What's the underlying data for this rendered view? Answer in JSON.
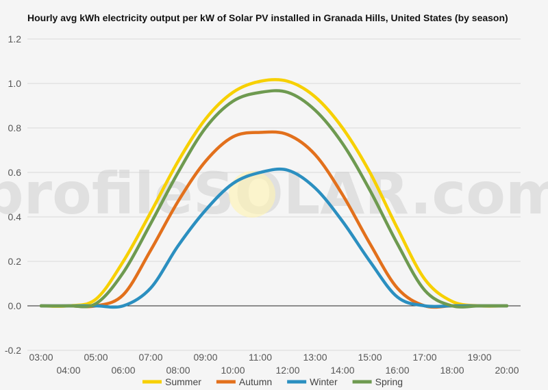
{
  "watermark": "profileSOLAR.com",
  "chart_data": {
    "type": "line",
    "title": "Hourly avg kWh electricity output per kW of Solar PV installed in Granada Hills, United States (by season)",
    "xlabel": "",
    "ylabel": "",
    "x": [
      3,
      4,
      5,
      6,
      7,
      8,
      9,
      10,
      11,
      12,
      13,
      14,
      15,
      16,
      17,
      18,
      19,
      20
    ],
    "x_tick_labels": [
      "03:00",
      "04:00",
      "05:00",
      "06:00",
      "07:00",
      "08:00",
      "09:00",
      "10:00",
      "11:00",
      "12:00",
      "13:00",
      "14:00",
      "15:00",
      "16:00",
      "17:00",
      "18:00",
      "19:00",
      "20:00"
    ],
    "ylim": [
      -0.2,
      1.2
    ],
    "y_ticks": [
      -0.2,
      0.0,
      0.2,
      0.4,
      0.6,
      0.8,
      1.0,
      1.2
    ],
    "y_tick_labels": [
      "-0.2",
      "0.0",
      "0.2",
      "0.4",
      "0.6",
      "0.8",
      "1.0",
      "1.2"
    ],
    "grid": true,
    "legend_position": "bottom",
    "series": [
      {
        "name": "Summer",
        "color": "#f7d000",
        "values": [
          0,
          0,
          0.03,
          0.2,
          0.42,
          0.65,
          0.84,
          0.96,
          1.01,
          1.01,
          0.94,
          0.8,
          0.6,
          0.35,
          0.12,
          0.02,
          0,
          0
        ]
      },
      {
        "name": "Autumn",
        "color": "#e2701c",
        "values": [
          0,
          0,
          0,
          0.05,
          0.25,
          0.47,
          0.65,
          0.76,
          0.78,
          0.77,
          0.68,
          0.5,
          0.28,
          0.08,
          0,
          0,
          0,
          0
        ]
      },
      {
        "name": "Winter",
        "color": "#2b8fc0",
        "values": [
          0,
          0,
          0,
          0,
          0.08,
          0.27,
          0.43,
          0.55,
          0.6,
          0.61,
          0.53,
          0.38,
          0.2,
          0.04,
          0,
          0,
          0,
          0
        ]
      },
      {
        "name": "Spring",
        "color": "#6e9a50",
        "values": [
          0,
          0,
          0.01,
          0.15,
          0.37,
          0.6,
          0.8,
          0.92,
          0.96,
          0.96,
          0.88,
          0.73,
          0.52,
          0.28,
          0.07,
          0,
          0,
          0
        ]
      }
    ]
  }
}
